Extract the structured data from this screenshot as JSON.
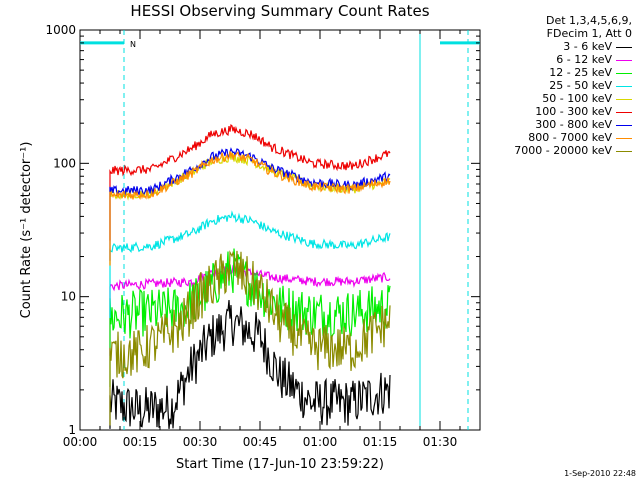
{
  "chart_data": {
    "type": "line",
    "title": "HESSI Observing Summary Count Rates",
    "xlabel": "Start Time (17-Jun-10 23:59:22)",
    "ylabel": "Count Rate (s⁻¹ detector⁻¹)",
    "y_scale": "log",
    "ylim": [
      1,
      1000
    ],
    "xlim_minutes": [
      0,
      100
    ],
    "x_ticks": [
      "00:00",
      "00:15",
      "00:30",
      "00:45",
      "01:00",
      "01:15",
      "01:30"
    ],
    "x_tick_minutes": [
      0,
      15,
      30,
      45,
      60,
      75,
      90
    ],
    "y_ticks": [
      "1",
      "10",
      "100",
      "1000"
    ],
    "y_tick_values": [
      1,
      10,
      100,
      1000
    ],
    "grid": false,
    "legend_header": [
      "Det 1,3,4,5,6,9,",
      "FDecim 1, Att 0"
    ],
    "legend_position": "right",
    "footer_date": "1-Sep-2010 22:48",
    "flag_label": "N",
    "flag_segments": [
      {
        "start": 0,
        "end": 11,
        "level": 800,
        "color": "#00e0e0"
      },
      {
        "start": 90,
        "end": 100,
        "level": 800,
        "color": "#00e0e0"
      }
    ],
    "vertical_markers": [
      {
        "x": 11,
        "style": "dashed",
        "color": "#00e0e0"
      },
      {
        "x": 85,
        "style": "solid",
        "color": "#00e0e0"
      },
      {
        "x": 97,
        "style": "dashed",
        "color": "#00e0e0"
      }
    ],
    "x_start_minutes": 7.5,
    "x_end_minutes": 77.5,
    "series": [
      {
        "name": "3 - 6 keV",
        "color": "#000000",
        "x": [
          8,
          15,
          23,
          28,
          33,
          38,
          45,
          50,
          58,
          68,
          77
        ],
        "y": [
          1.6,
          1.4,
          1.5,
          3.0,
          5.0,
          6.5,
          5.0,
          2.5,
          1.6,
          1.6,
          2.0
        ]
      },
      {
        "name": "6 - 12 keV",
        "color": "#ee00ee",
        "x": [
          8,
          18,
          28,
          33,
          37,
          43,
          48,
          58,
          68,
          77
        ],
        "y": [
          12,
          12.5,
          13,
          15,
          16,
          15,
          14,
          13,
          13,
          14
        ]
      },
      {
        "name": "12 - 25 keV",
        "color": "#00ee00",
        "x": [
          8,
          15,
          25,
          30,
          38,
          45,
          50,
          58,
          68,
          77
        ],
        "y": [
          7,
          7.5,
          8,
          10,
          16,
          11,
          8.5,
          7.5,
          7.5,
          8.5
        ]
      },
      {
        "name": "25 - 50 keV",
        "color": "#00e5e5",
        "x": [
          8,
          18,
          28,
          33,
          38,
          43,
          48,
          58,
          68,
          77
        ],
        "y": [
          23,
          24,
          30,
          37,
          40,
          37,
          31,
          25,
          24,
          28
        ]
      },
      {
        "name": "50 - 100 keV",
        "color": "#d8d800",
        "x": [
          8,
          18,
          28,
          33,
          38,
          43,
          48,
          58,
          68,
          77
        ],
        "y": [
          58,
          60,
          85,
          105,
          112,
          104,
          88,
          68,
          64,
          73
        ]
      },
      {
        "name": "100 - 300 keV",
        "color": "#ee0000",
        "x": [
          8,
          18,
          28,
          33,
          38,
          43,
          48,
          58,
          68,
          77
        ],
        "y": [
          88,
          90,
          130,
          165,
          180,
          165,
          132,
          100,
          95,
          118
        ]
      },
      {
        "name": "300 - 800 keV",
        "color": "#0000ee",
        "x": [
          8,
          18,
          28,
          33,
          38,
          43,
          48,
          58,
          68,
          77
        ],
        "y": [
          62,
          63,
          90,
          112,
          122,
          112,
          92,
          72,
          68,
          80
        ]
      },
      {
        "name": "800 - 7000 keV",
        "color": "#ff8c00",
        "x": [
          8,
          18,
          28,
          33,
          38,
          43,
          48,
          58,
          68,
          77
        ],
        "y": [
          57,
          59,
          84,
          106,
          116,
          106,
          86,
          67,
          64,
          74
        ]
      },
      {
        "name": "7000 - 20000 keV",
        "color": "#8b8b00",
        "x": [
          8,
          15,
          25,
          30,
          38,
          45,
          50,
          58,
          68,
          77
        ],
        "y": [
          3.6,
          3.8,
          6,
          10,
          17,
          11,
          6.5,
          4.2,
          4.0,
          6.5
        ]
      }
    ]
  }
}
